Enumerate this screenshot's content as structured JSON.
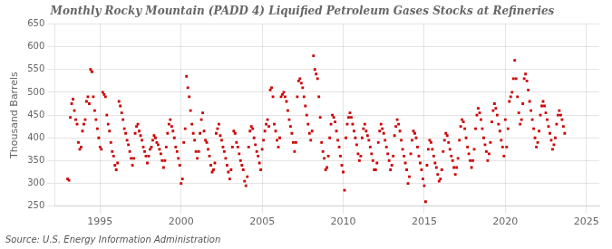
{
  "chart_data": {
    "type": "scatter",
    "title": "Monthly Rocky Mountain (PADD 4) Liquified Petroleum Gases Stocks at Refineries",
    "ylabel": "Thousand Barrels",
    "annotations": [
      "Source: U.S. Energy Information Administration"
    ],
    "color": "#cc0000",
    "marker": "square",
    "grid": true,
    "xlim": [
      1992.2,
      2025.8
    ],
    "xticks": [
      1995,
      2000,
      2005,
      2010,
      2015,
      2020,
      2025
    ],
    "ylim": [
      250,
      650
    ],
    "yticks": [
      250,
      300,
      350,
      400,
      450,
      500,
      550,
      600,
      650
    ],
    "x": [
      1993.0,
      1993.083,
      1993.167,
      1993.25,
      1993.333,
      1993.417,
      1993.5,
      1993.583,
      1993.667,
      1993.75,
      1993.833,
      1993.917,
      1994.0,
      1994.083,
      1994.167,
      1994.25,
      1994.333,
      1994.417,
      1994.5,
      1994.583,
      1994.667,
      1994.75,
      1994.833,
      1994.917,
      1995.0,
      1995.083,
      1995.167,
      1995.25,
      1995.333,
      1995.417,
      1995.5,
      1995.583,
      1995.667,
      1995.75,
      1995.833,
      1995.917,
      1996.0,
      1996.083,
      1996.167,
      1996.25,
      1996.333,
      1996.417,
      1996.5,
      1996.583,
      1996.667,
      1996.75,
      1996.833,
      1996.917,
      1997.0,
      1997.083,
      1997.167,
      1997.25,
      1997.333,
      1997.417,
      1997.5,
      1997.583,
      1997.667,
      1997.75,
      1997.833,
      1997.917,
      1998.0,
      1998.083,
      1998.167,
      1998.25,
      1998.333,
      1998.417,
      1998.5,
      1998.583,
      1998.667,
      1998.75,
      1998.833,
      1998.917,
      1999.0,
      1999.083,
      1999.167,
      1999.25,
      1999.333,
      1999.417,
      1999.5,
      1999.583,
      1999.667,
      1999.75,
      1999.833,
      1999.917,
      2000.0,
      2000.083,
      2000.167,
      2000.25,
      2000.333,
      2000.417,
      2000.5,
      2000.583,
      2000.667,
      2000.75,
      2000.833,
      2000.917,
      2001.0,
      2001.083,
      2001.167,
      2001.25,
      2001.333,
      2001.417,
      2001.5,
      2001.583,
      2001.667,
      2001.75,
      2001.833,
      2001.917,
      2002.0,
      2002.083,
      2002.167,
      2002.25,
      2002.333,
      2002.417,
      2002.5,
      2002.583,
      2002.667,
      2002.75,
      2002.833,
      2002.917,
      2003.0,
      2003.083,
      2003.167,
      2003.25,
      2003.333,
      2003.417,
      2003.5,
      2003.583,
      2003.667,
      2003.75,
      2003.833,
      2003.917,
      2004.0,
      2004.083,
      2004.167,
      2004.25,
      2004.333,
      2004.417,
      2004.5,
      2004.583,
      2004.667,
      2004.75,
      2004.833,
      2004.917,
      2005.0,
      2005.083,
      2005.167,
      2005.25,
      2005.333,
      2005.417,
      2005.5,
      2005.583,
      2005.667,
      2005.75,
      2005.833,
      2005.917,
      2006.0,
      2006.083,
      2006.167,
      2006.25,
      2006.333,
      2006.417,
      2006.5,
      2006.583,
      2006.667,
      2006.75,
      2006.833,
      2006.917,
      2007.0,
      2007.083,
      2007.167,
      2007.25,
      2007.333,
      2007.417,
      2007.5,
      2007.583,
      2007.667,
      2007.75,
      2007.833,
      2007.917,
      2008.0,
      2008.083,
      2008.167,
      2008.25,
      2008.333,
      2008.417,
      2008.5,
      2008.583,
      2008.667,
      2008.75,
      2008.833,
      2008.917,
      2009.0,
      2009.083,
      2009.167,
      2009.25,
      2009.333,
      2009.417,
      2009.5,
      2009.583,
      2009.667,
      2009.75,
      2009.833,
      2009.917,
      2010.0,
      2010.083,
      2010.167,
      2010.25,
      2010.333,
      2010.417,
      2010.5,
      2010.583,
      2010.667,
      2010.75,
      2010.833,
      2010.917,
      2011.0,
      2011.083,
      2011.167,
      2011.25,
      2011.333,
      2011.417,
      2011.5,
      2011.583,
      2011.667,
      2011.75,
      2011.833,
      2011.917,
      2012.0,
      2012.083,
      2012.167,
      2012.25,
      2012.333,
      2012.417,
      2012.5,
      2012.583,
      2012.667,
      2012.75,
      2012.833,
      2012.917,
      2013.0,
      2013.083,
      2013.167,
      2013.25,
      2013.333,
      2013.417,
      2013.5,
      2013.583,
      2013.667,
      2013.75,
      2013.833,
      2013.917,
      2014.0,
      2014.083,
      2014.167,
      2014.25,
      2014.333,
      2014.417,
      2014.5,
      2014.583,
      2014.667,
      2014.75,
      2014.833,
      2014.917,
      2015.0,
      2015.083,
      2015.167,
      2015.25,
      2015.333,
      2015.417,
      2015.5,
      2015.583,
      2015.667,
      2015.75,
      2015.833,
      2015.917,
      2016.0,
      2016.083,
      2016.167,
      2016.25,
      2016.333,
      2016.417,
      2016.5,
      2016.583,
      2016.667,
      2016.75,
      2016.833,
      2016.917,
      2017.0,
      2017.083,
      2017.167,
      2017.25,
      2017.333,
      2017.417,
      2017.5,
      2017.583,
      2017.667,
      2017.75,
      2017.833,
      2017.917,
      2018.0,
      2018.083,
      2018.167,
      2018.25,
      2018.333,
      2018.417,
      2018.5,
      2018.583,
      2018.667,
      2018.75,
      2018.833,
      2018.917,
      2019.0,
      2019.083,
      2019.167,
      2019.25,
      2019.333,
      2019.417,
      2019.5,
      2019.583,
      2019.667,
      2019.75,
      2019.833,
      2019.917,
      2020.0,
      2020.083,
      2020.167,
      2020.25,
      2020.333,
      2020.417,
      2020.5,
      2020.583,
      2020.667,
      2020.75,
      2020.833,
      2020.917,
      2021.0,
      2021.083,
      2021.167,
      2021.25,
      2021.333,
      2021.417,
      2021.5,
      2021.583,
      2021.667,
      2021.75,
      2021.833,
      2021.917,
      2022.0,
      2022.083,
      2022.167,
      2022.25,
      2022.333,
      2022.417,
      2022.5,
      2022.583,
      2022.667,
      2022.75,
      2022.833,
      2022.917,
      2023.0,
      2023.083,
      2023.167,
      2023.25,
      2023.333,
      2023.417,
      2023.5,
      2023.583,
      2023.667
    ],
    "values": [
      310,
      307,
      445,
      475,
      485,
      460,
      440,
      430,
      390,
      375,
      380,
      415,
      430,
      440,
      480,
      490,
      475,
      550,
      545,
      490,
      460,
      440,
      420,
      400,
      380,
      375,
      500,
      495,
      490,
      450,
      430,
      415,
      390,
      370,
      360,
      340,
      330,
      345,
      480,
      470,
      455,
      440,
      420,
      410,
      395,
      385,
      370,
      355,
      340,
      355,
      410,
      425,
      430,
      415,
      405,
      395,
      380,
      370,
      360,
      345,
      360,
      375,
      380,
      395,
      405,
      400,
      390,
      385,
      375,
      365,
      350,
      335,
      350,
      380,
      410,
      430,
      440,
      425,
      415,
      400,
      380,
      370,
      355,
      340,
      300,
      310,
      390,
      420,
      535,
      510,
      490,
      460,
      430,
      410,
      395,
      370,
      355,
      370,
      410,
      440,
      455,
      415,
      395,
      390,
      375,
      360,
      340,
      325,
      330,
      345,
      410,
      420,
      430,
      405,
      395,
      380,
      370,
      355,
      340,
      325,
      310,
      330,
      380,
      415,
      410,
      390,
      380,
      365,
      350,
      340,
      330,
      305,
      295,
      315,
      380,
      415,
      425,
      420,
      400,
      385,
      370,
      360,
      345,
      330,
      375,
      395,
      415,
      430,
      440,
      425,
      505,
      510,
      490,
      430,
      415,
      395,
      380,
      400,
      490,
      495,
      500,
      490,
      480,
      460,
      440,
      425,
      410,
      390,
      370,
      390,
      490,
      525,
      530,
      520,
      510,
      490,
      470,
      450,
      430,
      410,
      395,
      415,
      580,
      550,
      540,
      530,
      490,
      445,
      390,
      370,
      355,
      330,
      335,
      360,
      400,
      430,
      450,
      445,
      435,
      415,
      395,
      380,
      360,
      340,
      325,
      285,
      400,
      430,
      445,
      455,
      445,
      430,
      415,
      400,
      385,
      365,
      350,
      360,
      400,
      420,
      430,
      415,
      405,
      395,
      380,
      365,
      350,
      330,
      330,
      345,
      390,
      415,
      430,
      420,
      410,
      395,
      380,
      365,
      350,
      330,
      340,
      360,
      405,
      425,
      440,
      430,
      415,
      395,
      375,
      360,
      345,
      330,
      300,
      315,
      365,
      395,
      415,
      410,
      400,
      380,
      360,
      345,
      330,
      310,
      295,
      260,
      340,
      375,
      395,
      390,
      375,
      360,
      345,
      335,
      320,
      305,
      310,
      330,
      370,
      395,
      410,
      405,
      390,
      375,
      360,
      350,
      335,
      320,
      335,
      355,
      395,
      425,
      440,
      435,
      420,
      400,
      380,
      365,
      350,
      335,
      350,
      375,
      420,
      450,
      465,
      455,
      440,
      420,
      400,
      385,
      370,
      350,
      365,
      390,
      435,
      460,
      475,
      465,
      450,
      430,
      415,
      395,
      380,
      360,
      440,
      380,
      420,
      480,
      490,
      500,
      530,
      570,
      530,
      490,
      455,
      430,
      440,
      475,
      530,
      540,
      525,
      505,
      480,
      460,
      440,
      420,
      400,
      380,
      390,
      415,
      450,
      470,
      480,
      470,
      455,
      440,
      425,
      410,
      395,
      375,
      385,
      400,
      430,
      450,
      460,
      450,
      440,
      425,
      410
    ]
  }
}
